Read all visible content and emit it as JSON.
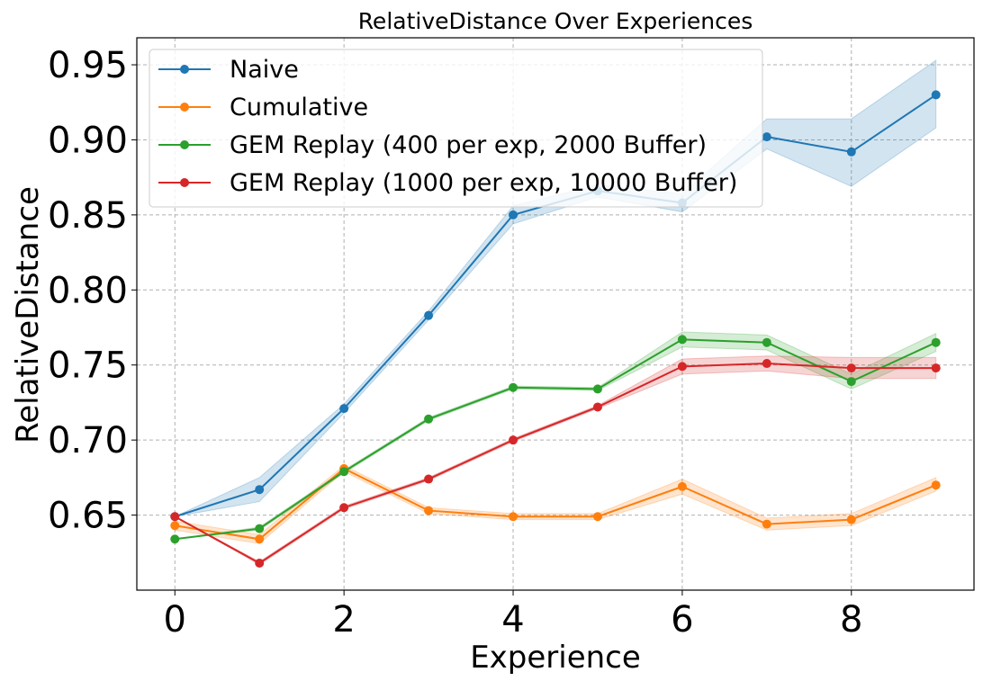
{
  "chart_data": {
    "type": "line",
    "title": "RelativeDistance Over Experiences",
    "xlabel": "Experience",
    "ylabel": "RelativeDistance",
    "xlim": [
      -0.45,
      9.45
    ],
    "ylim": [
      0.6,
      0.968
    ],
    "xticks": [
      0,
      2,
      4,
      6,
      8
    ],
    "xtick_labels": [
      "0",
      "2",
      "4",
      "6",
      "8"
    ],
    "yticks": [
      0.65,
      0.7,
      0.75,
      0.8,
      0.85,
      0.9,
      0.95
    ],
    "ytick_labels": [
      "0.65",
      "0.70",
      "0.75",
      "0.80",
      "0.85",
      "0.90",
      "0.95"
    ],
    "grid": true,
    "legend_position": "top-left",
    "x": [
      0,
      1,
      2,
      3,
      4,
      5,
      6,
      7,
      8,
      9
    ],
    "series": [
      {
        "name": "Naive",
        "color": "#1f77b4",
        "values": [
          0.649,
          0.667,
          0.721,
          0.783,
          0.85,
          0.866,
          0.858,
          0.902,
          0.892,
          0.93
        ],
        "lower": [
          0.649,
          0.659,
          0.718,
          0.78,
          0.844,
          0.862,
          0.852,
          0.894,
          0.869,
          0.908
        ],
        "upper": [
          0.649,
          0.675,
          0.724,
          0.786,
          0.856,
          0.87,
          0.864,
          0.914,
          0.914,
          0.953
        ]
      },
      {
        "name": "Cumulative",
        "color": "#ff7f0e",
        "values": [
          0.643,
          0.634,
          0.681,
          0.653,
          0.649,
          0.649,
          0.669,
          0.644,
          0.647,
          0.67
        ],
        "lower": [
          0.64,
          0.631,
          0.679,
          0.651,
          0.647,
          0.647,
          0.664,
          0.64,
          0.643,
          0.666
        ],
        "upper": [
          0.646,
          0.637,
          0.683,
          0.655,
          0.651,
          0.651,
          0.674,
          0.648,
          0.651,
          0.675
        ]
      },
      {
        "name": "GEM Replay (400 per exp, 2000 Buffer)",
        "color": "#2ca02c",
        "values": [
          0.634,
          0.641,
          0.679,
          0.714,
          0.735,
          0.734,
          0.767,
          0.765,
          0.739,
          0.765
        ],
        "lower": [
          0.634,
          0.64,
          0.678,
          0.713,
          0.734,
          0.733,
          0.762,
          0.76,
          0.734,
          0.759
        ],
        "upper": [
          0.634,
          0.642,
          0.68,
          0.715,
          0.736,
          0.735,
          0.772,
          0.77,
          0.744,
          0.771
        ]
      },
      {
        "name": "GEM Replay (1000 per exp, 10000 Buffer)",
        "color": "#d62728",
        "values": [
          0.649,
          0.618,
          0.655,
          0.674,
          0.7,
          0.722,
          0.749,
          0.751,
          0.748,
          0.748
        ],
        "lower": [
          0.649,
          0.617,
          0.654,
          0.673,
          0.699,
          0.721,
          0.744,
          0.746,
          0.741,
          0.741
        ],
        "upper": [
          0.649,
          0.619,
          0.656,
          0.675,
          0.701,
          0.723,
          0.754,
          0.756,
          0.755,
          0.755
        ]
      }
    ]
  }
}
